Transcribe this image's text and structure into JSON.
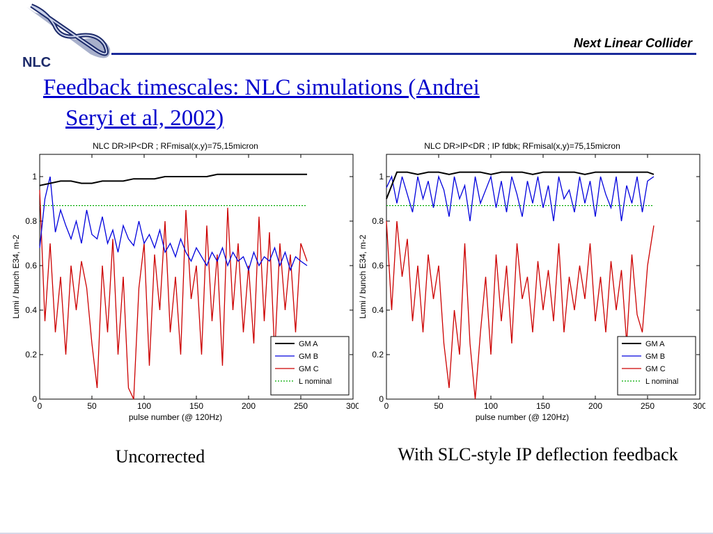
{
  "header": {
    "logo_text": "NLC",
    "title": "Next Linear Collider"
  },
  "slide": {
    "title_line1": "Feedback timescales:   NLC simulations (Andrei",
    "title_line2": "Seryi et al, 2002)"
  },
  "colors": {
    "gm_a": "#000000",
    "gm_b": "#0000dd",
    "gm_c": "#cc0000",
    "l_nominal": "#00aa00",
    "title_blue": "#0000cc",
    "rule_blue": "#1a2a9a"
  },
  "chart_data": [
    {
      "type": "line",
      "title": "NLC  DR>IP<DR ; RFmisal(x,y)=75,15micron",
      "xlabel": "pulse number (@ 120Hz)",
      "ylabel": "Lumi / bunch  E34, m-2",
      "xlim": [
        0,
        300
      ],
      "ylim": [
        0,
        1.1
      ],
      "xticks": [
        0,
        50,
        100,
        150,
        200,
        250,
        300
      ],
      "yticks": [
        0,
        0.2,
        0.4,
        0.6,
        0.8,
        1
      ],
      "legend_position": "bottom-right",
      "grid": false,
      "caption": "Uncorrected",
      "series": [
        {
          "name": "GM A",
          "style": "solid",
          "x": [
            0,
            10,
            20,
            30,
            40,
            50,
            60,
            70,
            80,
            90,
            100,
            110,
            120,
            130,
            140,
            150,
            160,
            170,
            180,
            190,
            200,
            210,
            220,
            230,
            240,
            250,
            256
          ],
          "values": [
            0.96,
            0.97,
            0.98,
            0.98,
            0.97,
            0.97,
            0.98,
            0.98,
            0.98,
            0.99,
            0.99,
            0.99,
            1.0,
            1.0,
            1.0,
            1.0,
            1.0,
            1.01,
            1.01,
            1.01,
            1.01,
            1.01,
            1.01,
            1.01,
            1.01,
            1.01,
            1.01
          ]
        },
        {
          "name": "GM B",
          "style": "solid",
          "x": [
            0,
            5,
            10,
            15,
            20,
            25,
            30,
            35,
            40,
            45,
            50,
            55,
            60,
            65,
            70,
            75,
            80,
            85,
            90,
            95,
            100,
            105,
            110,
            115,
            120,
            125,
            130,
            135,
            140,
            145,
            150,
            155,
            160,
            165,
            170,
            175,
            180,
            185,
            190,
            195,
            200,
            205,
            210,
            215,
            220,
            225,
            230,
            235,
            240,
            245,
            250,
            256
          ],
          "values": [
            0.68,
            0.9,
            1.0,
            0.75,
            0.85,
            0.78,
            0.72,
            0.8,
            0.7,
            0.85,
            0.74,
            0.72,
            0.82,
            0.7,
            0.76,
            0.66,
            0.78,
            0.72,
            0.69,
            0.8,
            0.7,
            0.74,
            0.68,
            0.76,
            0.66,
            0.7,
            0.64,
            0.72,
            0.66,
            0.62,
            0.68,
            0.64,
            0.6,
            0.66,
            0.62,
            0.68,
            0.6,
            0.66,
            0.62,
            0.64,
            0.58,
            0.66,
            0.6,
            0.64,
            0.62,
            0.68,
            0.6,
            0.66,
            0.58,
            0.64,
            0.62,
            0.6
          ]
        },
        {
          "name": "GM C",
          "style": "solid",
          "x": [
            0,
            5,
            10,
            15,
            20,
            25,
            30,
            35,
            40,
            45,
            50,
            55,
            60,
            65,
            70,
            75,
            80,
            85,
            90,
            95,
            100,
            105,
            110,
            115,
            120,
            125,
            130,
            135,
            140,
            145,
            150,
            155,
            160,
            165,
            170,
            175,
            180,
            185,
            190,
            195,
            200,
            205,
            210,
            215,
            220,
            225,
            230,
            235,
            240,
            245,
            250,
            256
          ],
          "values": [
            0.94,
            0.35,
            0.7,
            0.3,
            0.55,
            0.2,
            0.6,
            0.4,
            0.62,
            0.5,
            0.25,
            0.05,
            0.6,
            0.3,
            0.72,
            0.2,
            0.55,
            0.05,
            0.0,
            0.5,
            0.7,
            0.15,
            0.65,
            0.4,
            0.8,
            0.3,
            0.55,
            0.2,
            0.85,
            0.45,
            0.6,
            0.2,
            0.78,
            0.35,
            0.65,
            0.15,
            0.86,
            0.4,
            0.7,
            0.3,
            0.6,
            0.25,
            0.82,
            0.35,
            0.75,
            0.2,
            0.7,
            0.4,
            0.65,
            0.3,
            0.7,
            0.62
          ]
        },
        {
          "name": "L nominal",
          "style": "dotted",
          "x": [
            0,
            256
          ],
          "values": [
            0.87,
            0.87
          ]
        }
      ]
    },
    {
      "type": "line",
      "title": "NLC  DR>IP<DR ; IP fdbk; RFmisal(x,y)=75,15micron",
      "xlabel": "pulse number (@ 120Hz)",
      "ylabel": "Lumi / bunch  E34, m-2",
      "xlim": [
        0,
        300
      ],
      "ylim": [
        0,
        1.1
      ],
      "xticks": [
        0,
        50,
        100,
        150,
        200,
        250,
        300
      ],
      "yticks": [
        0,
        0.2,
        0.4,
        0.6,
        0.8,
        1
      ],
      "legend_position": "bottom-right",
      "grid": false,
      "caption": "With SLC-style IP deflection feedback",
      "series": [
        {
          "name": "GM A",
          "style": "solid",
          "x": [
            0,
            10,
            20,
            30,
            40,
            50,
            60,
            70,
            80,
            90,
            100,
            110,
            120,
            130,
            140,
            150,
            160,
            170,
            180,
            190,
            200,
            210,
            220,
            230,
            240,
            250,
            256
          ],
          "values": [
            0.9,
            1.02,
            1.02,
            1.01,
            1.02,
            1.02,
            1.01,
            1.02,
            1.02,
            1.02,
            1.01,
            1.02,
            1.02,
            1.02,
            1.01,
            1.02,
            1.02,
            1.02,
            1.02,
            1.01,
            1.02,
            1.02,
            1.02,
            1.02,
            1.02,
            1.02,
            1.01
          ]
        },
        {
          "name": "GM B",
          "style": "solid",
          "x": [
            0,
            5,
            10,
            15,
            20,
            25,
            30,
            35,
            40,
            45,
            50,
            55,
            60,
            65,
            70,
            75,
            80,
            85,
            90,
            95,
            100,
            105,
            110,
            115,
            120,
            125,
            130,
            135,
            140,
            145,
            150,
            155,
            160,
            165,
            170,
            175,
            180,
            185,
            190,
            195,
            200,
            205,
            210,
            215,
            220,
            225,
            230,
            235,
            240,
            245,
            250,
            256
          ],
          "values": [
            0.95,
            1.0,
            0.88,
            1.0,
            0.92,
            0.84,
            1.0,
            0.9,
            0.98,
            0.86,
            1.0,
            0.94,
            0.82,
            1.0,
            0.9,
            0.96,
            0.8,
            1.0,
            0.88,
            0.94,
            1.0,
            0.86,
            0.98,
            0.84,
            1.0,
            0.92,
            0.82,
            0.98,
            0.88,
            1.0,
            0.86,
            0.96,
            0.8,
            1.0,
            0.9,
            0.94,
            0.84,
            1.0,
            0.88,
            0.98,
            0.82,
            1.0,
            0.92,
            0.86,
            1.0,
            0.8,
            0.96,
            0.88,
            1.0,
            0.84,
            0.98,
            1.0
          ]
        },
        {
          "name": "GM C",
          "style": "solid",
          "x": [
            0,
            5,
            10,
            15,
            20,
            25,
            30,
            35,
            40,
            45,
            50,
            55,
            60,
            65,
            70,
            75,
            80,
            85,
            90,
            95,
            100,
            105,
            110,
            115,
            120,
            125,
            130,
            135,
            140,
            145,
            150,
            155,
            160,
            165,
            170,
            175,
            180,
            185,
            190,
            195,
            200,
            205,
            210,
            215,
            220,
            225,
            230,
            235,
            240,
            245,
            250,
            256
          ],
          "values": [
            0.8,
            0.4,
            0.8,
            0.55,
            0.72,
            0.35,
            0.6,
            0.3,
            0.65,
            0.45,
            0.6,
            0.25,
            0.05,
            0.4,
            0.2,
            0.7,
            0.25,
            0.0,
            0.3,
            0.55,
            0.2,
            0.65,
            0.35,
            0.6,
            0.25,
            0.7,
            0.45,
            0.55,
            0.3,
            0.62,
            0.4,
            0.58,
            0.35,
            0.7,
            0.3,
            0.55,
            0.4,
            0.6,
            0.45,
            0.7,
            0.35,
            0.55,
            0.3,
            0.62,
            0.4,
            0.58,
            0.25,
            0.65,
            0.38,
            0.3,
            0.6,
            0.78
          ]
        },
        {
          "name": "L nominal",
          "style": "dotted",
          "x": [
            0,
            256
          ],
          "values": [
            0.87,
            0.87
          ]
        }
      ]
    }
  ]
}
